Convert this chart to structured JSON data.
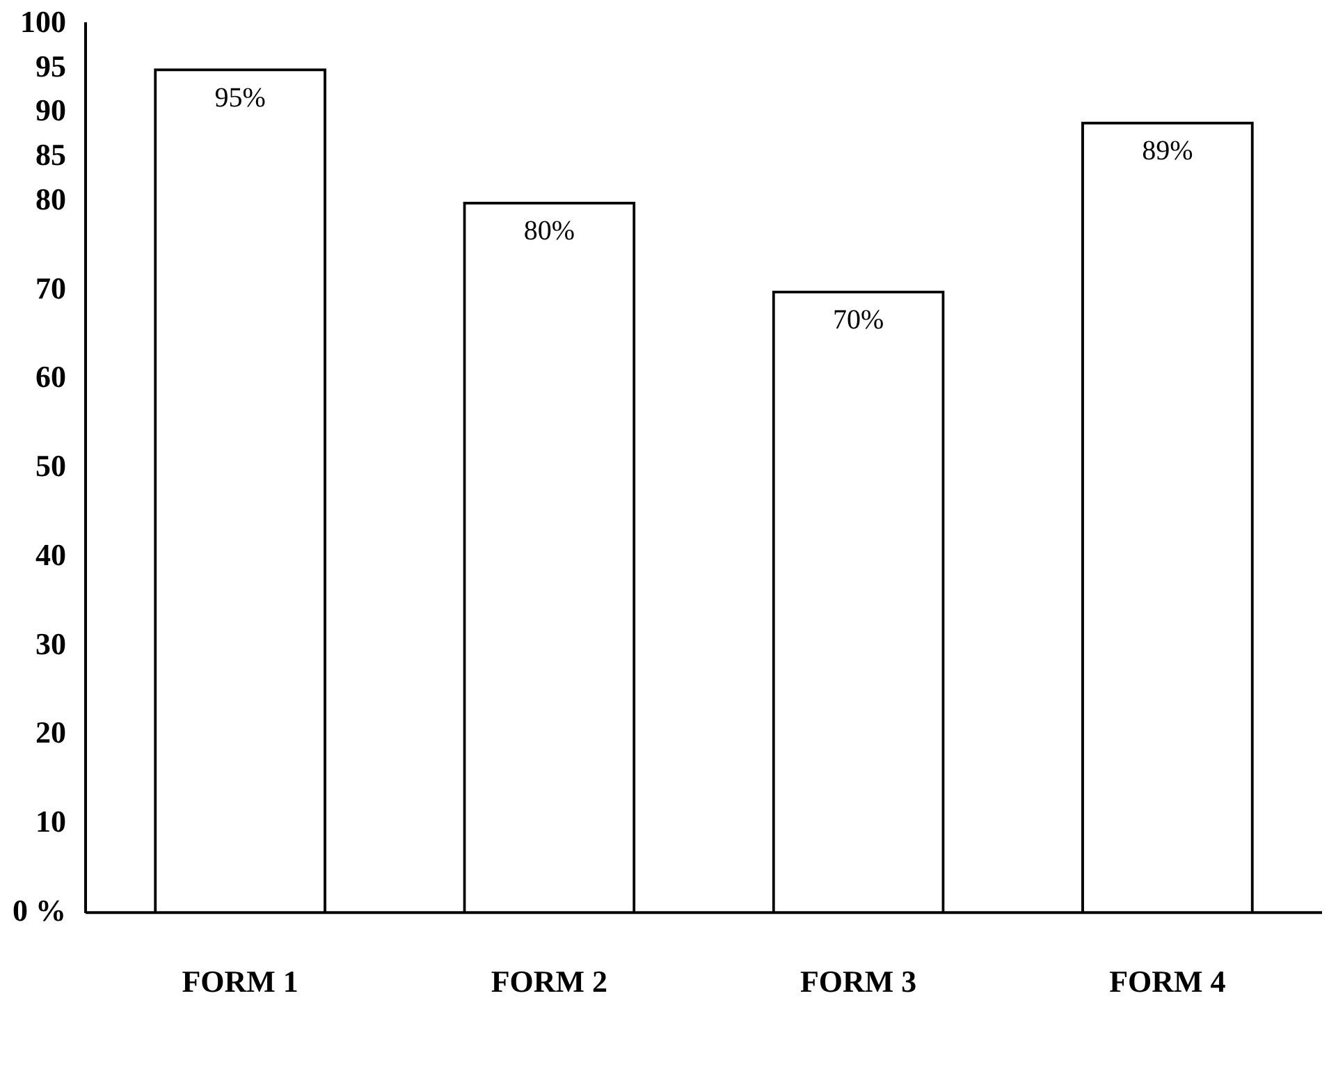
{
  "chart_data": {
    "type": "bar",
    "categories": [
      "FORM 1",
      "FORM 2",
      "FORM 3",
      "FORM 4"
    ],
    "values": [
      95,
      80,
      70,
      89
    ],
    "value_labels": [
      "95%",
      "80%",
      "70%",
      "89%"
    ],
    "color": "#000000",
    "ylim": [
      0,
      100
    ],
    "yticks": [
      {
        "value": 0,
        "label": "0 %"
      },
      10,
      20,
      30,
      40,
      50,
      60,
      70,
      80,
      85,
      90,
      95,
      100
    ],
    "grid": false,
    "legend": false
  }
}
